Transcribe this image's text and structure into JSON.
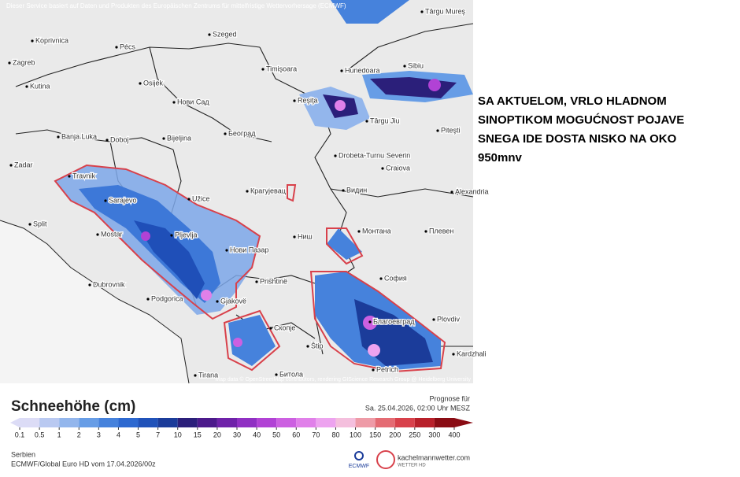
{
  "map": {
    "header": "Dieser Service basiert auf Daten und Produkten des Europäischen Zentrums für mittelfristige Wettervorhersage (ECMWF)",
    "attribution": "Map data © OpenStreetMap contributors, rendering GIScience Research Group @ Heidelberg University",
    "places": [
      "Koprivnica",
      "Pécs",
      "Szeged",
      "Zagreb",
      "Kutina",
      "Osijek",
      "Timişoara",
      "Hunedoara",
      "Sibiu",
      "Târgu Mureş",
      "Reşiţa",
      "Нови Сад",
      "Banja Luka",
      "Doboj",
      "Bijeljina",
      "Београд",
      "Drobeta-Turnu Severin",
      "Târgu Jiu",
      "Craiova",
      "Piteşti",
      "Travnik",
      "Sarajevo",
      "Užice",
      "Крагујевац",
      "Split",
      "Mostar",
      "Pljevlja",
      "Ниш",
      "Видин",
      "Монтана",
      "Плевен",
      "Alexandria",
      "Нови Пазар",
      "Dubrovnik",
      "Podgorica",
      "Prishtinë",
      "Gjakovë",
      "София",
      "Скопје",
      "Благоевград",
      "Plovdiv",
      "Štip",
      "Kardzhali",
      "Petrich",
      "Tirana",
      "Битола",
      "Zadar"
    ]
  },
  "legend": {
    "title": "Schneehöhe (cm)",
    "ticks": [
      0.1,
      0.5,
      1,
      2,
      3,
      4,
      5,
      7,
      10,
      15,
      20,
      30,
      40,
      50,
      60,
      70,
      80,
      100,
      150,
      200,
      250,
      300,
      400
    ],
    "colors": [
      "#dcdcf6",
      "#b9c9f1",
      "#93b6ec",
      "#679de6",
      "#4682dc",
      "#2d69d0",
      "#2052b9",
      "#1b3c9a",
      "#2b1f7a",
      "#4c1a8b",
      "#6f22a9",
      "#9030c3",
      "#b142d5",
      "#cc60e1",
      "#e080e9",
      "#eda3ef",
      "#f4bfdd",
      "#ee9ba7",
      "#e46b73",
      "#d8414b",
      "#b8202a",
      "#8a0c14"
    ]
  },
  "footer": {
    "forecast_label": "Prognose für",
    "forecast_time": "Sa. 25.04.2026, 02:00 Uhr MESZ",
    "region": "Serbien",
    "model": "ECMWF/Global Euro HD vom 17.04.2026/00z",
    "ecmwf": "ECMWF",
    "brand": "kachelmannwetter.com",
    "brand_sub": "WETTER HD"
  },
  "note": {
    "lines": [
      "SA AKTUELOM, VRLO HLADNOM",
      "SINOPTIKOM MOGUĆNOST POJAVE",
      "SNEGA IDE DOSTA NISKO NA OKO",
      "950mnv"
    ]
  }
}
